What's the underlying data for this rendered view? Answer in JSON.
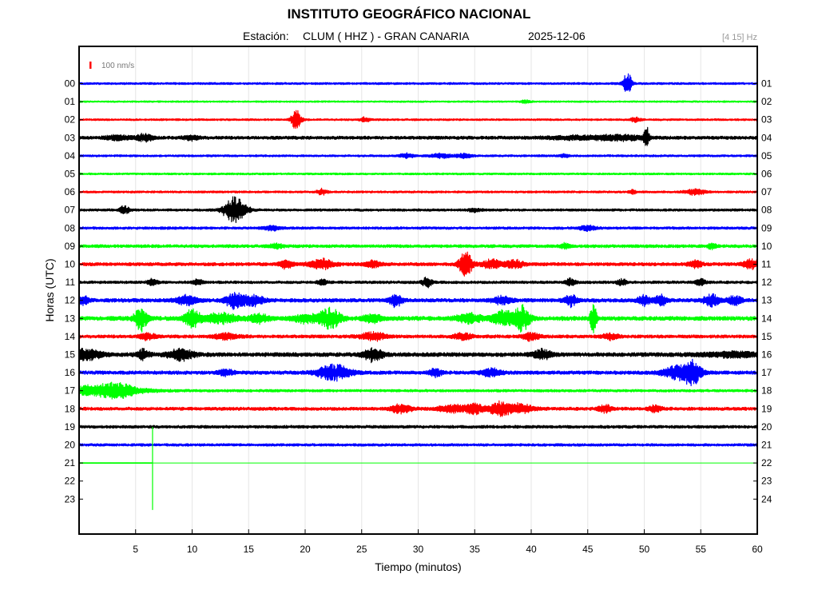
{
  "header": {
    "title": "INSTITUTO GEOGRÁFICO NACIONAL",
    "station_label": "Estación:",
    "station_value": "CLUM ( HHZ ) - GRAN CANARIA",
    "date": "2025-12-06",
    "band": "[4 15] Hz"
  },
  "chart_data": {
    "type": "line",
    "title": "INSTITUTO GEOGRÁFICO NACIONAL",
    "xlabel": "Tiempo (minutos)",
    "ylabel": "Horas (UTC)",
    "xlim": [
      0,
      60
    ],
    "x_ticks": [
      5,
      10,
      15,
      20,
      25,
      30,
      35,
      40,
      45,
      50,
      55,
      60
    ],
    "grid": true,
    "scale_label": "100 nm/s",
    "left_hour_labels": [
      "00",
      "01",
      "02",
      "03",
      "04",
      "05",
      "06",
      "07",
      "08",
      "09",
      "10",
      "11",
      "12",
      "13",
      "14",
      "15",
      "16",
      "17",
      "18",
      "19",
      "20",
      "21",
      "22",
      "23"
    ],
    "right_hour_labels": [
      "01",
      "02",
      "03",
      "04",
      "05",
      "06",
      "07",
      "08",
      "09",
      "10",
      "11",
      "12",
      "13",
      "14",
      "15",
      "16",
      "17",
      "18",
      "19",
      "20",
      "21",
      "22",
      "23",
      "24"
    ],
    "colors": [
      "#0000ff",
      "#00ff00",
      "#ff0000",
      "#000000"
    ],
    "traces": [
      {
        "hour": "00",
        "color": "#0000ff",
        "noise": 1.3,
        "events": [
          [
            48.5,
            16,
            0.25
          ]
        ]
      },
      {
        "hour": "01",
        "color": "#00ff00",
        "noise": 1.0,
        "events": [
          [
            39.5,
            2,
            0.3
          ]
        ]
      },
      {
        "hour": "02",
        "color": "#ff0000",
        "noise": 1.2,
        "events": [
          [
            19.2,
            12,
            0.3
          ],
          [
            25.3,
            3,
            0.3
          ],
          [
            49.2,
            3,
            0.3
          ]
        ]
      },
      {
        "hour": "03",
        "color": "#000000",
        "noise": 2.0,
        "events": [
          [
            3.5,
            3,
            0.8
          ],
          [
            5.8,
            5,
            0.5
          ],
          [
            10,
            3,
            0.5
          ],
          [
            44,
            2,
            2
          ],
          [
            48,
            3,
            1.5
          ],
          [
            50.2,
            18,
            0.15
          ]
        ]
      },
      {
        "hour": "04",
        "color": "#0000ff",
        "noise": 1.3,
        "events": [
          [
            29,
            3,
            0.4
          ],
          [
            32,
            3,
            0.6
          ],
          [
            34,
            3,
            0.5
          ],
          [
            43,
            2,
            0.3
          ]
        ]
      },
      {
        "hour": "05",
        "color": "#00ff00",
        "noise": 1.2,
        "events": []
      },
      {
        "hour": "06",
        "color": "#ff0000",
        "noise": 1.3,
        "events": [
          [
            21.5,
            4,
            0.3
          ],
          [
            49,
            3,
            0.2
          ],
          [
            54.5,
            4,
            0.6
          ]
        ]
      },
      {
        "hour": "07",
        "color": "#000000",
        "noise": 1.5,
        "events": [
          [
            4,
            5,
            0.3
          ],
          [
            13.8,
            16,
            0.7
          ],
          [
            35,
            2,
            0.4
          ]
        ]
      },
      {
        "hour": "08",
        "color": "#0000ff",
        "noise": 1.6,
        "events": [
          [
            17,
            3,
            0.5
          ],
          [
            45,
            3,
            0.5
          ]
        ]
      },
      {
        "hour": "09",
        "color": "#00ff00",
        "noise": 1.9,
        "events": [
          [
            17.5,
            3,
            0.4
          ],
          [
            43,
            3,
            0.3
          ],
          [
            56,
            3,
            0.3
          ]
        ]
      },
      {
        "hour": "10",
        "color": "#ff0000",
        "noise": 2.0,
        "events": [
          [
            18.3,
            5,
            0.4
          ],
          [
            21.5,
            6,
            0.8
          ],
          [
            26,
            4,
            0.5
          ],
          [
            34.2,
            16,
            0.4
          ],
          [
            36.5,
            6,
            0.6
          ],
          [
            38.5,
            5,
            0.6
          ],
          [
            54.5,
            5,
            0.4
          ],
          [
            59.5,
            6,
            0.5
          ]
        ]
      },
      {
        "hour": "11",
        "color": "#000000",
        "noise": 1.7,
        "events": [
          [
            6.5,
            4,
            0.3
          ],
          [
            10.5,
            4,
            0.3
          ],
          [
            21.5,
            4,
            0.3
          ],
          [
            30.8,
            6,
            0.3
          ],
          [
            43.5,
            5,
            0.3
          ],
          [
            48,
            4,
            0.3
          ],
          [
            55,
            4,
            0.3
          ]
        ]
      },
      {
        "hour": "12",
        "color": "#0000ff",
        "noise": 2.3,
        "events": [
          [
            0.3,
            5,
            0.4
          ],
          [
            9.5,
            6,
            0.7
          ],
          [
            13.8,
            10,
            0.6
          ],
          [
            15.5,
            6,
            0.6
          ],
          [
            28,
            8,
            0.4
          ],
          [
            37.5,
            5,
            0.6
          ],
          [
            43.5,
            7,
            0.4
          ],
          [
            50,
            6,
            0.4
          ],
          [
            51.5,
            6,
            0.4
          ],
          [
            56,
            7,
            0.5
          ],
          [
            58,
            6,
            0.4
          ]
        ]
      },
      {
        "hour": "13",
        "color": "#00ff00",
        "noise": 2.6,
        "events": [
          [
            5.5,
            15,
            0.4
          ],
          [
            10,
            11,
            0.5
          ],
          [
            12.5,
            6,
            1.0
          ],
          [
            16,
            6,
            0.6
          ],
          [
            20,
            5,
            0.8
          ],
          [
            22.2,
            12,
            0.7
          ],
          [
            26,
            5,
            0.6
          ],
          [
            34.5,
            6,
            0.8
          ],
          [
            37.5,
            9,
            0.7
          ],
          [
            39.2,
            15,
            0.5
          ],
          [
            45.5,
            18,
            0.2
          ]
        ]
      },
      {
        "hour": "14",
        "color": "#ff0000",
        "noise": 2.0,
        "events": [
          [
            6,
            4,
            0.5
          ],
          [
            13,
            4,
            0.8
          ],
          [
            26,
            5,
            0.8
          ],
          [
            34,
            4,
            0.6
          ],
          [
            40,
            5,
            0.5
          ],
          [
            47,
            4,
            0.5
          ]
        ]
      },
      {
        "hour": "15",
        "color": "#000000",
        "noise": 2.5,
        "events": [
          [
            0.5,
            7,
            1.0
          ],
          [
            5.7,
            6,
            0.4
          ],
          [
            9,
            7,
            0.8
          ],
          [
            26,
            8,
            0.6
          ],
          [
            41,
            6,
            0.6
          ],
          [
            58,
            3,
            2.0
          ]
        ]
      },
      {
        "hour": "16",
        "color": "#0000ff",
        "noise": 2.2,
        "events": [
          [
            13,
            4,
            0.5
          ],
          [
            22.5,
            10,
            1.0
          ],
          [
            31.5,
            5,
            0.4
          ],
          [
            36.5,
            5,
            0.6
          ],
          [
            53,
            8,
            1.0
          ],
          [
            54.3,
            14,
            0.5
          ]
        ]
      },
      {
        "hour": "17",
        "color": "#00ff00",
        "noise": 1.6,
        "events": [
          [
            2,
            7,
            2.5
          ],
          [
            3.5,
            5,
            0.8
          ]
        ]
      },
      {
        "hour": "18",
        "color": "#ff0000",
        "noise": 2.0,
        "events": [
          [
            28.5,
            6,
            0.6
          ],
          [
            33,
            5,
            0.8
          ],
          [
            35,
            6,
            0.6
          ],
          [
            37.2,
            9,
            0.6
          ],
          [
            39,
            6,
            0.8
          ],
          [
            46.5,
            5,
            0.4
          ],
          [
            51,
            4,
            0.4
          ]
        ]
      },
      {
        "hour": "19",
        "color": "#000000",
        "noise": 1.8,
        "events": []
      },
      {
        "hour": "20",
        "color": "#0000ff",
        "noise": 1.6,
        "events": []
      },
      {
        "hour": "21",
        "color": "#00ff00",
        "noise": 1.4,
        "end": 6.5,
        "flat": true,
        "events": []
      }
    ],
    "spike": {
      "x": 6.5,
      "hour": "21",
      "color": "#00ff00",
      "from_row": 19,
      "to_row": 23.6
    }
  }
}
